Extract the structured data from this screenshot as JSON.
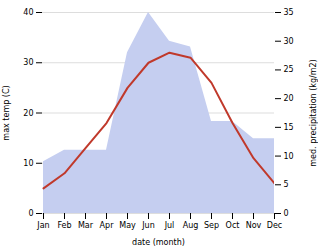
{
  "chart_data": {
    "type": "line",
    "xlabel": "date (month)",
    "ylabel": "max temp (C)",
    "y2label": "med. precipitation (kg/m2)",
    "categories": [
      "Jan",
      "Feb",
      "Mar",
      "Apr",
      "May",
      "Jun",
      "Jul",
      "Aug",
      "Sep",
      "Oct",
      "Nov",
      "Dec"
    ],
    "series": [
      {
        "type": "area",
        "color": "#c5cef0",
        "axis": "y2",
        "values": [
          9,
          11,
          11,
          11,
          28,
          35,
          30,
          29,
          16,
          16,
          13,
          13
        ]
      },
      {
        "type": "line",
        "color": "#c0392b",
        "values": [
          5,
          8,
          13,
          18,
          25,
          30,
          32,
          31,
          26,
          18,
          11,
          6
        ]
      }
    ],
    "ylim": [
      0,
      40
    ],
    "yticks": [
      0,
      10,
      20,
      30,
      40
    ],
    "y2lim": [
      0,
      35
    ],
    "y2ticks": [
      0,
      5,
      10,
      15,
      20,
      25,
      30,
      35
    ],
    "grid": true
  }
}
